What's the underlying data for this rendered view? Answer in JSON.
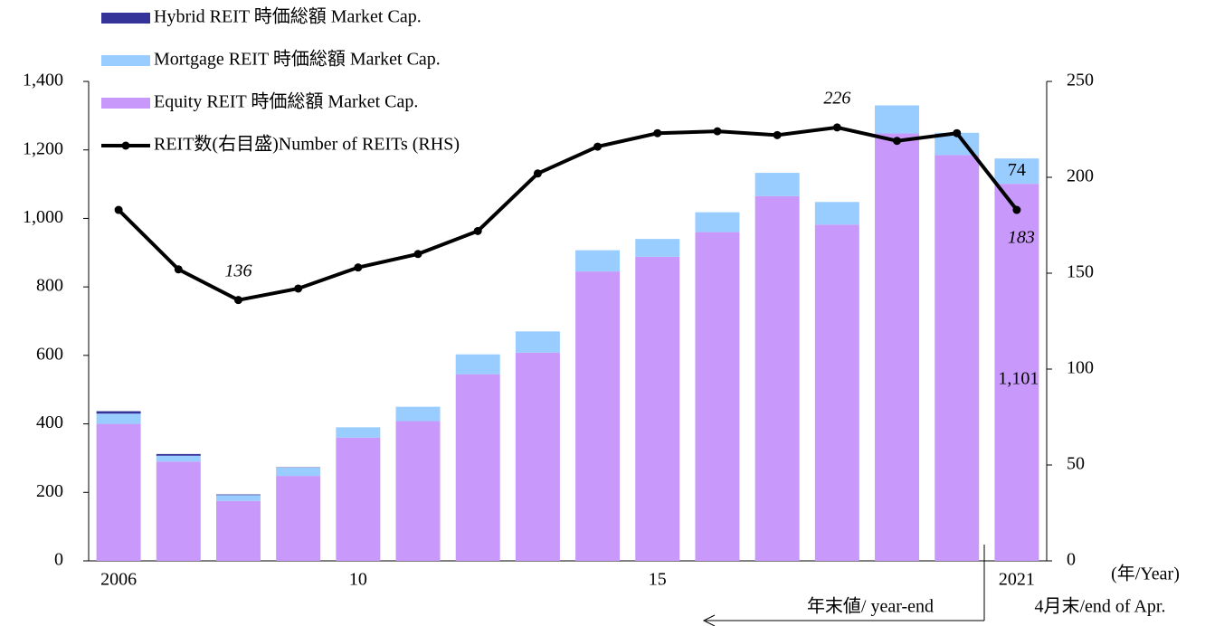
{
  "chart_data": {
    "type": "bar",
    "categories": [
      "2006",
      null,
      null,
      null,
      "10",
      null,
      null,
      null,
      null,
      "15",
      null,
      null,
      null,
      null,
      null,
      "2021"
    ],
    "xlabel": "(年/Year)",
    "annotations": [
      "年末値/ year-end",
      "4月末/end of Apr."
    ],
    "ylim": [
      0,
      1400
    ],
    "yticks": [
      0,
      200,
      400,
      600,
      800,
      {
        "value": 1000,
        "label": "1,000"
      },
      {
        "value": 1200,
        "label": "1,200"
      },
      {
        "value": 1400,
        "label": "1,400"
      }
    ],
    "y2lim": [
      0,
      250
    ],
    "y2ticks": [
      0,
      50,
      100,
      150,
      200,
      250
    ],
    "series": [
      {
        "name": "Equity REIT 時価総額 Market Cap.",
        "color": "#c899fb",
        "values": [
          400,
          290,
          175,
          248,
          360,
          408,
          545,
          608,
          845,
          888,
          960,
          1065,
          982,
          1248,
          1185,
          1101
        ],
        "value_labels": [
          null,
          null,
          null,
          null,
          null,
          null,
          null,
          null,
          null,
          null,
          null,
          null,
          null,
          null,
          null,
          "1,101"
        ]
      },
      {
        "name": "Mortgage REIT 時価総額 Market Cap.",
        "color": "#99ccff",
        "values": [
          30,
          17,
          17,
          24,
          30,
          42,
          58,
          62,
          62,
          52,
          58,
          68,
          66,
          82,
          65,
          74
        ],
        "value_labels": [
          null,
          null,
          null,
          null,
          null,
          null,
          null,
          null,
          null,
          null,
          null,
          null,
          null,
          null,
          null,
          "74"
        ]
      },
      {
        "name": "Hybrid REIT 時価総額 Market Cap.",
        "color": "#333399",
        "values": [
          7,
          5,
          2,
          1,
          0,
          0,
          0,
          0,
          0,
          0,
          0,
          0,
          0,
          0,
          0,
          0
        ]
      },
      {
        "name": "REIT数(右目盛)Number of REITs (RHS)",
        "color": "#000000",
        "type": "line",
        "axis": "y2",
        "values": [
          183,
          152,
          136,
          142,
          153,
          160,
          172,
          202,
          216,
          223,
          224,
          222,
          226,
          219,
          223,
          183
        ],
        "value_labels": [
          null,
          null,
          "136",
          null,
          null,
          null,
          null,
          null,
          null,
          null,
          null,
          null,
          "226",
          null,
          null,
          "183"
        ]
      }
    ]
  }
}
